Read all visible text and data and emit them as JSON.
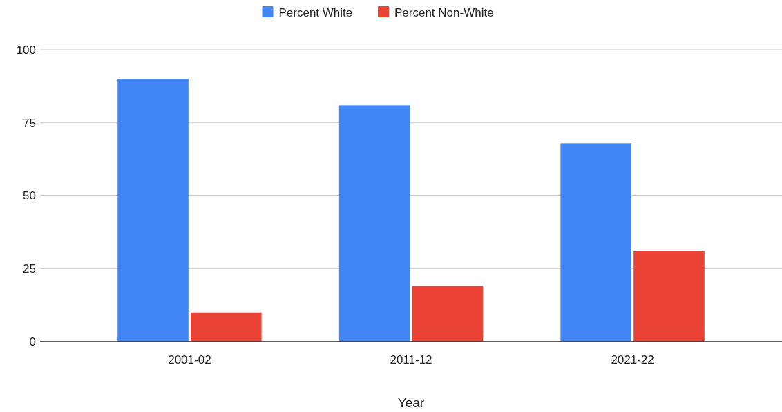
{
  "chart_data": {
    "type": "bar",
    "xlabel": "Year",
    "categories": [
      "2001-02",
      "2011-12",
      "2021-22"
    ],
    "series": [
      {
        "name": "Percent White",
        "color": "#4285f4",
        "values": [
          90,
          81,
          68
        ]
      },
      {
        "name": "Percent Non-White",
        "color": "#ea4335",
        "values": [
          10,
          19,
          31
        ]
      }
    ],
    "ylim": [
      0,
      100
    ],
    "yticks": [
      0,
      25,
      50,
      75,
      100
    ],
    "grid": "y",
    "legend": "top"
  }
}
